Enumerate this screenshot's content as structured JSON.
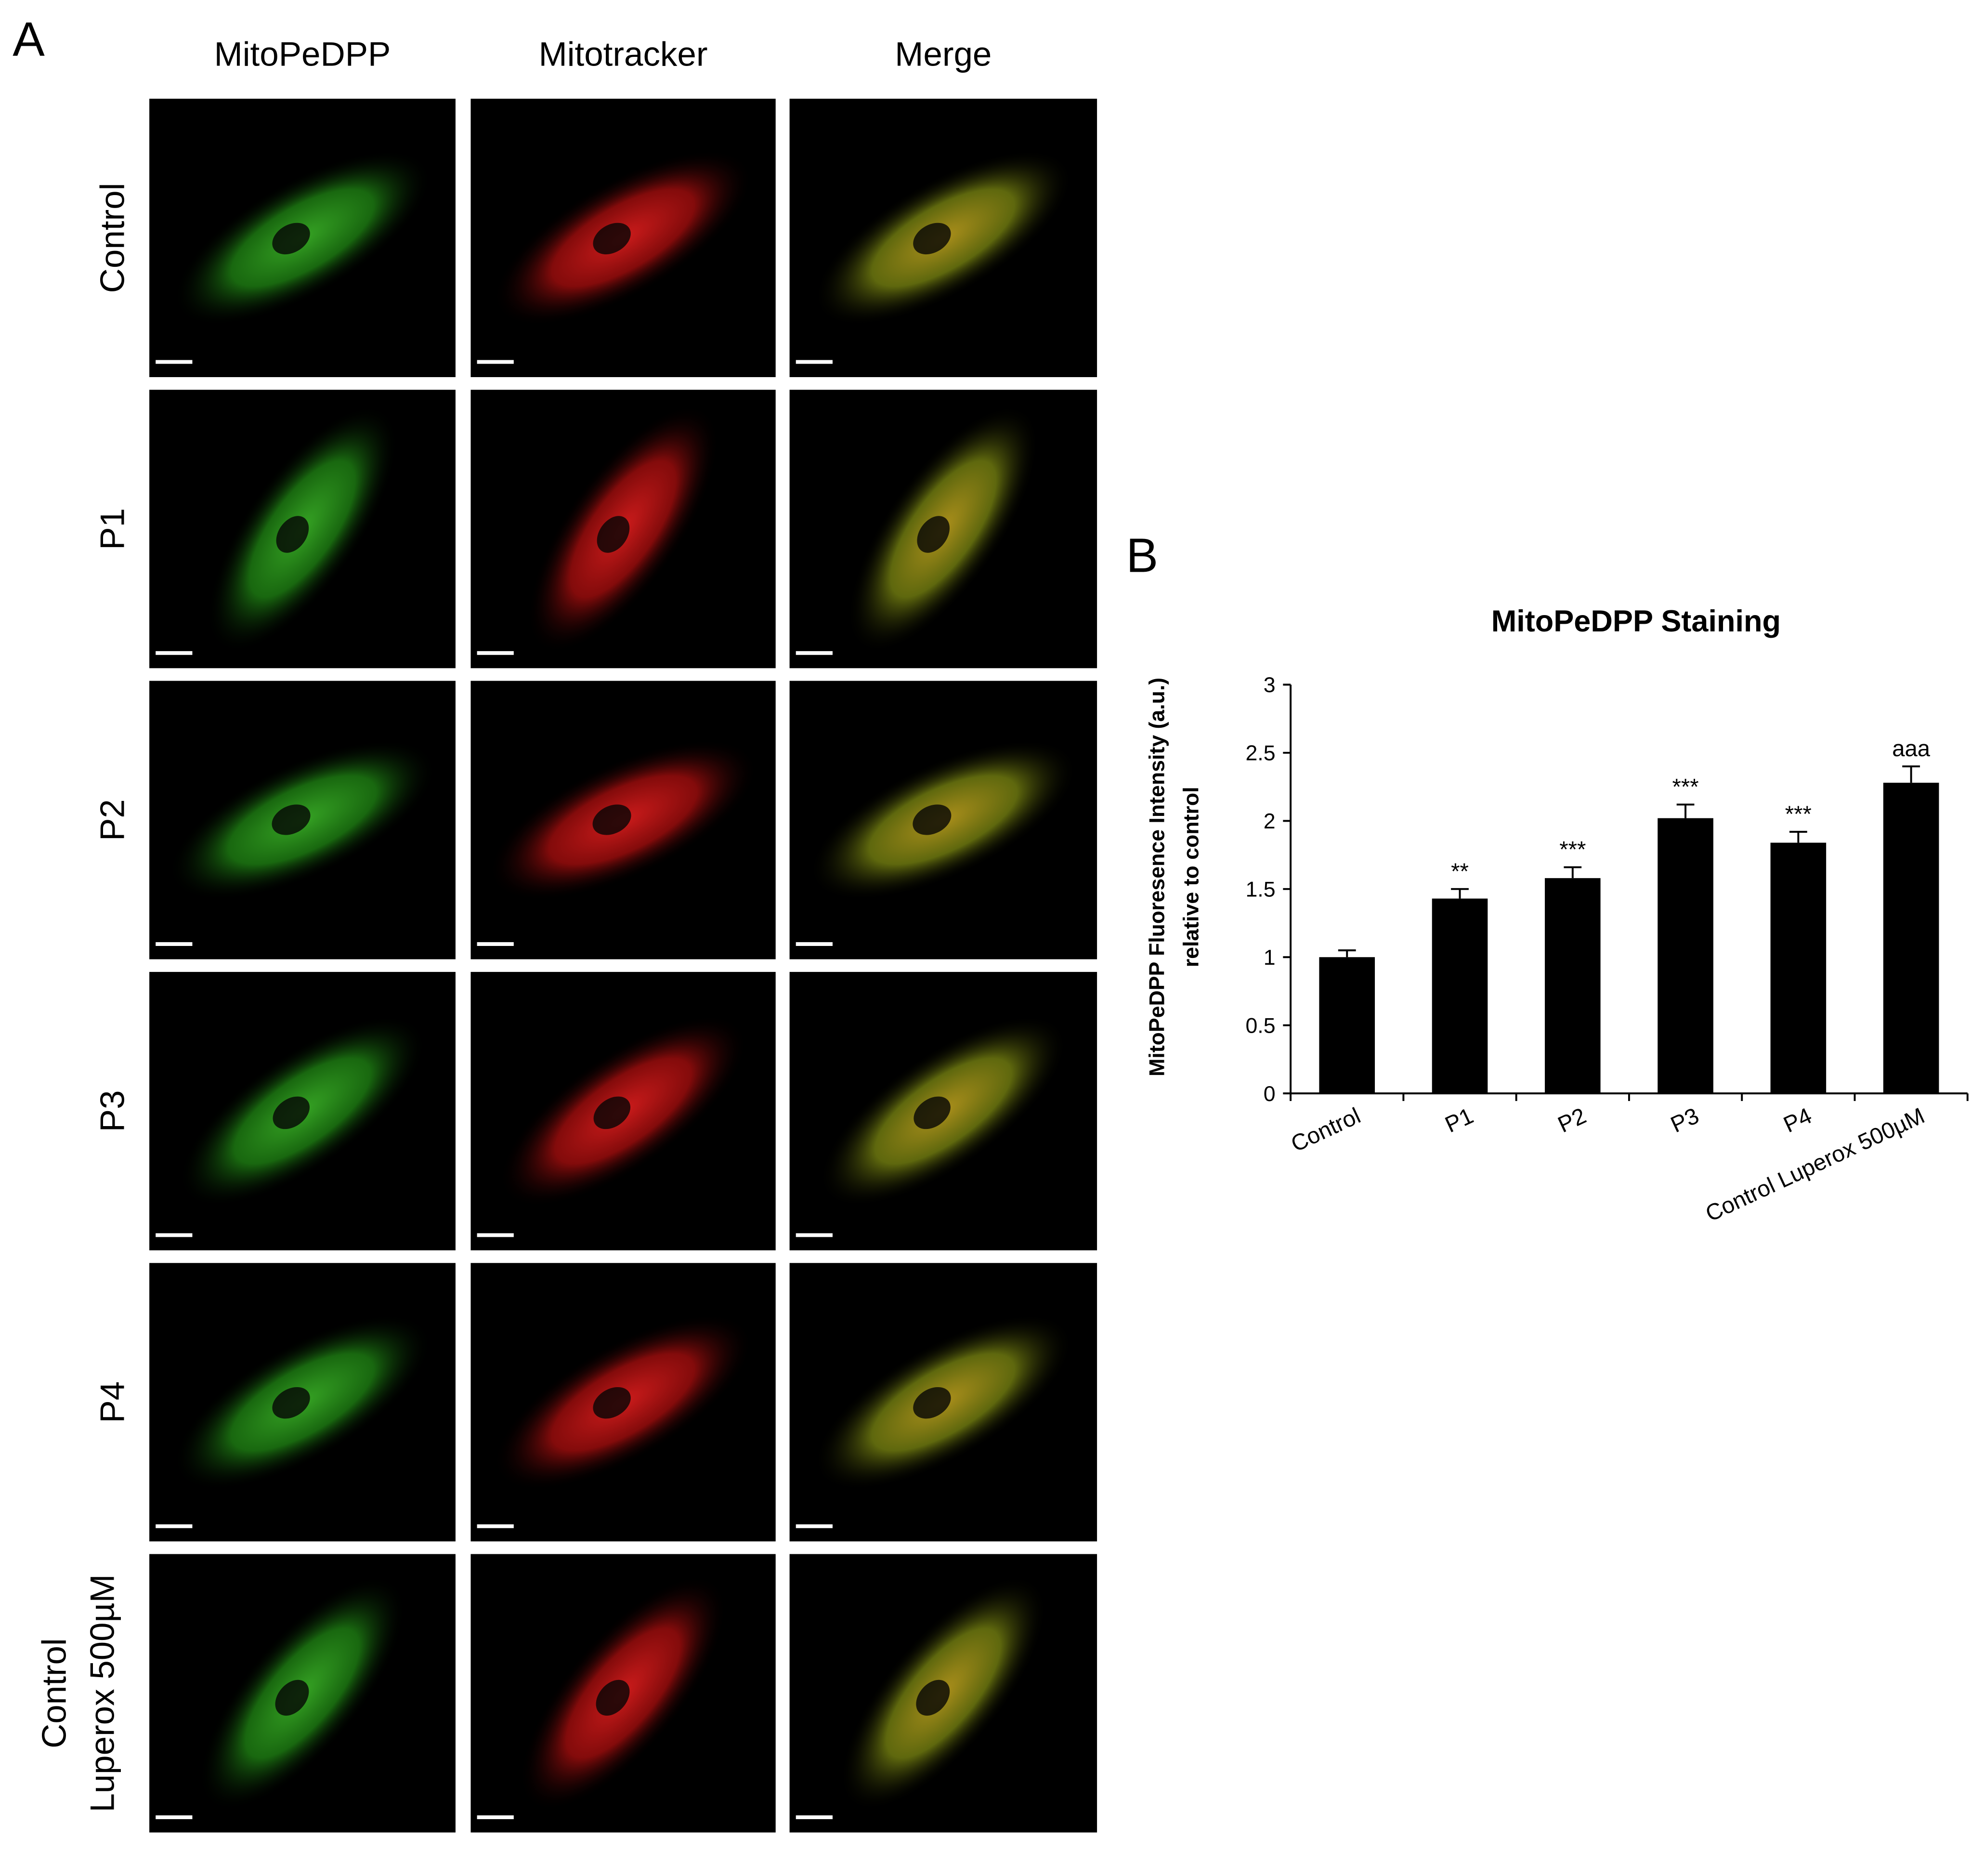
{
  "panel_a": {
    "label": "A",
    "columns": [
      "MitoPeDPP",
      "Mitotracker",
      "Merge"
    ],
    "rows": [
      [
        "Control"
      ],
      [
        "P1"
      ],
      [
        "P2"
      ],
      [
        "P3"
      ],
      [
        "P4"
      ],
      [
        "Control",
        "Luperox 500µM"
      ]
    ]
  },
  "chart_data": {
    "type": "bar",
    "panel_label": "B",
    "title": "MitoPeDPP Staining",
    "y_label": [
      "MitoPeDPP Fluoresence Intensity (a.u.)",
      "relative to control"
    ],
    "categories": [
      "Control",
      "P1",
      "P2",
      "P3",
      "P4",
      "Control Luperox 500µM"
    ],
    "values": [
      1.0,
      1.43,
      1.58,
      2.02,
      1.84,
      2.28
    ],
    "errors": [
      0.05,
      0.07,
      0.08,
      0.1,
      0.08,
      0.12
    ],
    "annotations": [
      null,
      "**",
      "***",
      "***",
      "***",
      "aaa"
    ],
    "color": "#000000",
    "ylim": [
      0,
      3
    ],
    "yticks": [
      0,
      0.5,
      1,
      1.5,
      2,
      2.5,
      3
    ]
  }
}
